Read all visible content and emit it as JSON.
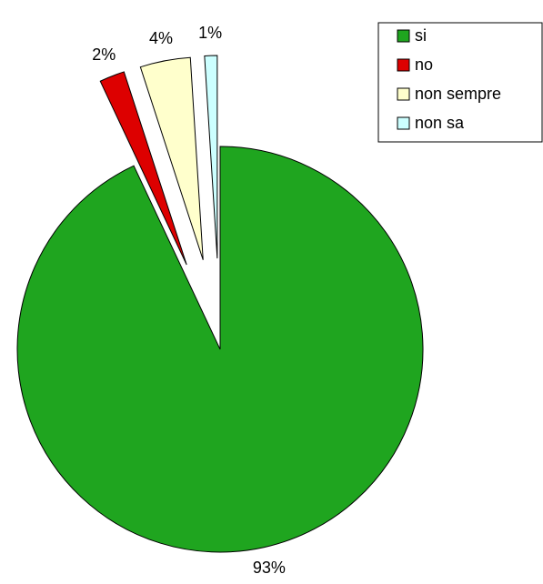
{
  "chart_data": {
    "type": "pie",
    "categories": [
      "si",
      "no",
      "non sempre",
      "non sa"
    ],
    "values": [
      93,
      2,
      4,
      1
    ],
    "value_labels": [
      "93%",
      "2%",
      "4%",
      "1%"
    ],
    "colors": [
      "#1fa51f",
      "#dd0000",
      "#ffffcc",
      "#ccffff"
    ],
    "legend": "top-right"
  }
}
